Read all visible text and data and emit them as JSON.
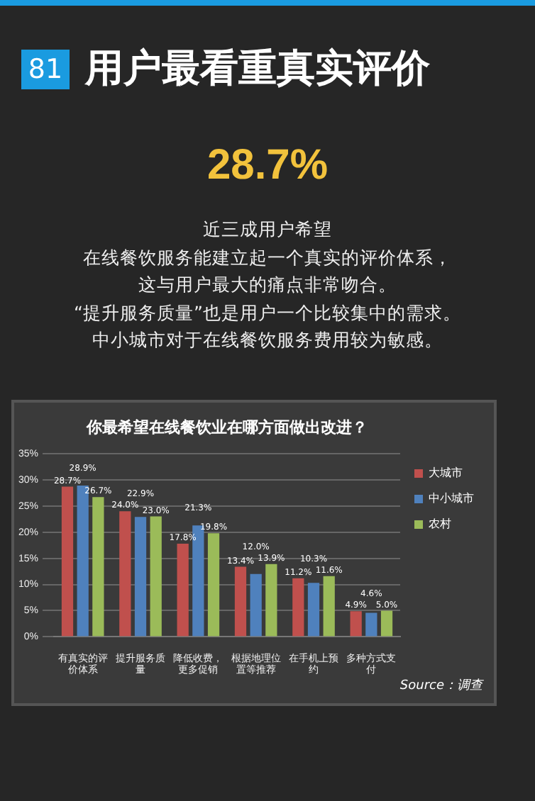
{
  "chart_data": {
    "type": "bar",
    "title": "用户最看重真实评价",
    "subtitle": "你最希望在线餐饮业在哪方面做出改进？",
    "annotations": [
      "81",
      "28.7%",
      "近三成用户希望",
      "在线餐饮服务能建立起一个真实的评价体系，",
      "这与用户最大的痛点非常吻合。",
      "“提升服务质量”也是用户一个比较集中的需求。",
      "中小城市对于在线餐饮服务费用较为敏感。",
      "Source：调查"
    ],
    "categories": [
      "有真实的评价体系",
      "提升服务质量",
      "降低收费，更多促销",
      "根据地理位置等推荐",
      "在手机上预约",
      "多种方式支付"
    ],
    "series": [
      {
        "name": "大城市",
        "color": "#c0504d",
        "values": [
          28.7,
          24.0,
          17.8,
          13.4,
          11.2,
          4.9
        ],
        "value_labels": [
          "28.7%",
          "24.0%",
          "17.8%",
          "13.4%",
          "11.2%",
          "4.9%"
        ]
      },
      {
        "name": "中小城市",
        "color": "#4f81bd",
        "values": [
          28.9,
          22.9,
          21.3,
          12.0,
          10.3,
          4.6
        ],
        "value_labels": [
          "28.9%",
          "22.9%",
          "21.3%",
          "12.0%",
          "10.3%",
          "4.6%"
        ]
      },
      {
        "name": "农村",
        "color": "#9bbb59",
        "values": [
          26.7,
          23.0,
          19.8,
          13.9,
          11.6,
          5.0
        ],
        "value_labels": [
          "26.7%",
          "23.0%",
          "19.8%",
          "13.9%",
          "11.6%",
          "5.0%"
        ]
      }
    ],
    "ylim": [
      0,
      35
    ],
    "yticks": [
      {
        "value": 0,
        "label": "0%"
      },
      {
        "value": 5,
        "label": "5%"
      },
      {
        "value": 10,
        "label": "10%"
      },
      {
        "value": 15,
        "label": "15%"
      },
      {
        "value": 20,
        "label": "20%"
      },
      {
        "value": 25,
        "label": "25%"
      },
      {
        "value": 30,
        "label": "30%"
      },
      {
        "value": 35,
        "label": "35%"
      }
    ],
    "grid": "y",
    "legend": "right"
  }
}
